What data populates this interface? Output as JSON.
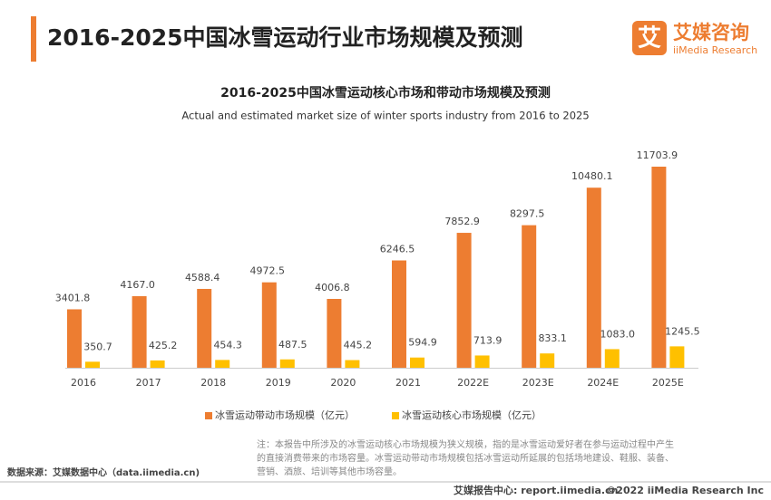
{
  "header": {
    "title": "2016-2025中国冰雪运动行业市场规模及预测",
    "logo_icon": "艾",
    "logo_name": "艾媒咨询",
    "logo_sub": "iiMedia Research"
  },
  "chart_data": {
    "type": "bar",
    "title": "2016-2025中国冰雪运动核心市场和带动市场规模及预测",
    "subtitle": "Actual and estimated market size of winter sports industry from 2016 to 2025",
    "categories": [
      "2016",
      "2017",
      "2018",
      "2019",
      "2020",
      "2021",
      "2022E",
      "2023E",
      "2024E",
      "2025E"
    ],
    "series": [
      {
        "name": "冰雪运动带动市场规模（亿元）",
        "color": "#ed7d31",
        "values": [
          3401.8,
          4167.0,
          4588.4,
          4972.5,
          4006.8,
          6246.5,
          7852.9,
          8297.5,
          10480.1,
          11703.9
        ],
        "value_labels": [
          "3401.8",
          "4167.0",
          "4588.4",
          "4972.5",
          "4006.8",
          "6246.5",
          "7852.9",
          "8297.5",
          "10480.1",
          "11703.9"
        ]
      },
      {
        "name": "冰雪运动核心市场规模（亿元）",
        "color": "#ffc000",
        "values": [
          350.7,
          425.2,
          454.3,
          487.5,
          445.2,
          594.9,
          713.9,
          833.1,
          1083.0,
          1245.5
        ],
        "value_labels": [
          "350.7",
          "425.2",
          "454.3",
          "487.5",
          "445.2",
          "594.9",
          "713.9",
          "833.1",
          "1083.0",
          "1245.5"
        ]
      }
    ]
  },
  "footer": {
    "note": [
      "注：本报告中所涉及的冰雪运动核心市场规模为狭义规模，指的是冰雪运动爱好者在参与运动过程中产生",
      "的直接消费带来的市场容量。冰雪运动带动市场规模包括冰雪运动所延展的包括场地建设、鞋服、装备、",
      "营销、酒旅、培训等其他市场容量。"
    ],
    "source": "数据来源：艾媒数据中心（data.iimedia.cn)",
    "report": "艾媒报告中心: report.iimedia.cn",
    "copyright": "©2022  iiMedia Research  Inc"
  }
}
